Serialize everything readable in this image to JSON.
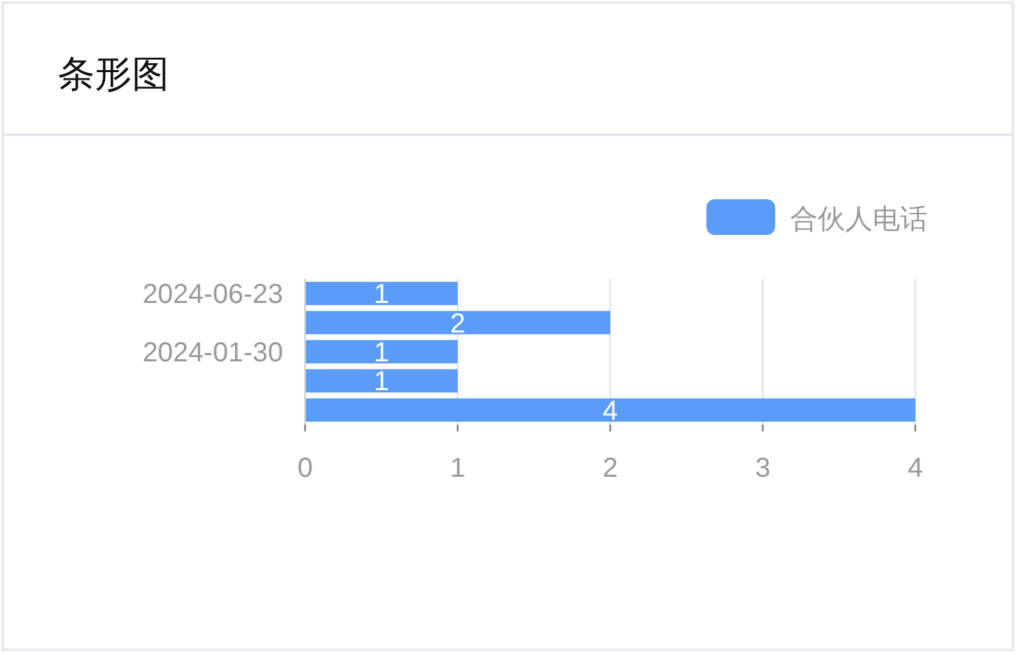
{
  "chart_data": {
    "type": "bar",
    "orientation": "horizontal",
    "title": "条形图",
    "categories": [
      "2024-06-23",
      null,
      "2024-01-30",
      null,
      null
    ],
    "series": [
      {
        "name": "合伙人电话",
        "color": "#5a9cf8",
        "values": [
          1,
          2,
          1,
          1,
          4
        ]
      }
    ],
    "xlim": [
      0,
      4
    ],
    "xticks": [
      0,
      1,
      2,
      3,
      4
    ],
    "grid": "x",
    "legend": "top right",
    "data_labels": true
  }
}
